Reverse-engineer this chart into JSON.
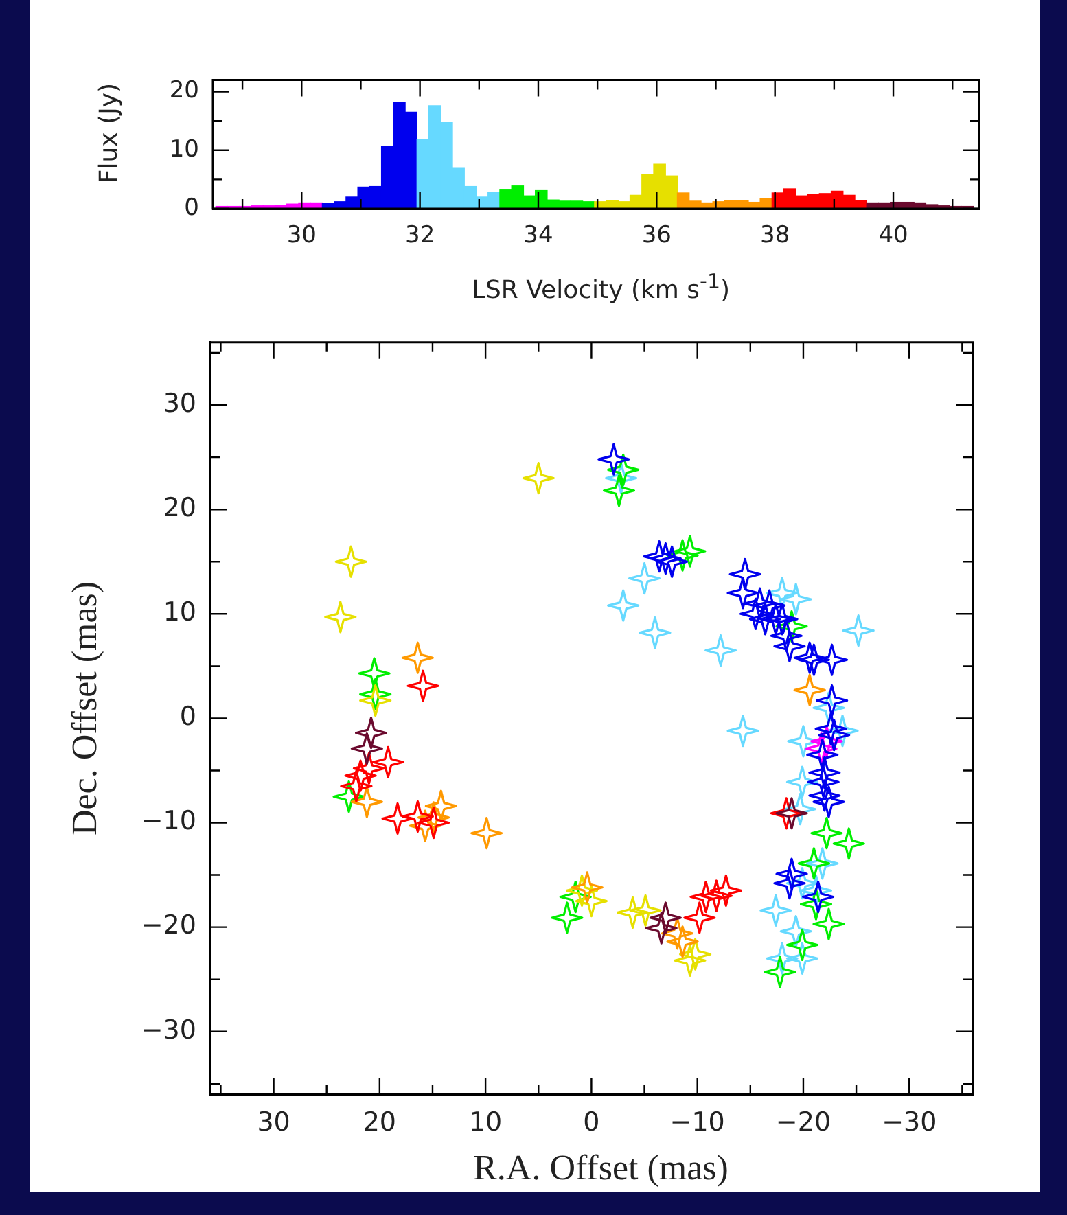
{
  "chart_data": [
    {
      "type": "histogram",
      "xlabel": "LSR Velocity (km s$^{-1}$)",
      "ylabel": "Flux (Jy)",
      "bins": [
        28.55,
        28.75,
        28.95,
        29.15,
        29.35,
        29.55,
        29.75,
        29.95,
        30.15,
        30.35,
        30.55,
        30.75,
        30.95,
        31.15,
        31.35,
        31.55,
        31.75,
        31.95,
        32.15,
        32.35,
        32.55,
        32.75,
        32.95,
        33.15,
        33.35,
        33.55,
        33.75,
        33.95,
        34.15,
        34.35,
        34.55,
        34.75,
        34.95,
        35.15,
        35.35,
        35.55,
        35.75,
        35.95,
        36.15,
        36.35,
        36.55,
        36.75,
        36.95,
        37.15,
        37.35,
        37.55,
        37.75,
        37.95,
        38.15,
        38.35,
        38.55,
        38.75,
        38.95,
        39.15,
        39.35,
        39.55,
        39.75,
        39.95,
        40.15,
        40.35,
        40.55,
        40.75,
        40.95,
        41.15,
        41.35
      ],
      "values": [
        0.4,
        0.4,
        0.4,
        0.5,
        0.5,
        0.6,
        0.8,
        1.0,
        1.0,
        0.9,
        1.2,
        2.0,
        3.7,
        3.8,
        10.6,
        18.2,
        16.5,
        11.8,
        17.6,
        14.8,
        6.9,
        3.8,
        2.0,
        2.8,
        3.2,
        3.9,
        2.2,
        3.1,
        1.5,
        1.3,
        1.3,
        1.2,
        1.2,
        1.4,
        1.2,
        2.3,
        5.9,
        7.6,
        5.6,
        2.7,
        1.3,
        1.0,
        1.2,
        1.4,
        1.4,
        1.1,
        1.8,
        2.7,
        3.4,
        2.2,
        2.5,
        2.6,
        3.0,
        2.3,
        1.4,
        1.0,
        1.0,
        1.1,
        1.1,
        1.0,
        0.7,
        0.5,
        0.4,
        0.4
      ],
      "colors": [
        "#ff00ff",
        "#ff00ff",
        "#ff00ff",
        "#ff00ff",
        "#ff00ff",
        "#ff00ff",
        "#ff00ff",
        "#ff00ff",
        "#ff00ff",
        "#0000ee",
        "#0000ee",
        "#0000ee",
        "#0000ee",
        "#0000ee",
        "#0000ee",
        "#0000ee",
        "#0000ee",
        "#66d9ff",
        "#66d9ff",
        "#66d9ff",
        "#66d9ff",
        "#66d9ff",
        "#66d9ff",
        "#66d9ff",
        "#00ee00",
        "#00ee00",
        "#00ee00",
        "#00ee00",
        "#00ee00",
        "#00ee00",
        "#00ee00",
        "#00ee00",
        "#e6e000",
        "#e6e000",
        "#e6e000",
        "#e6e000",
        "#e6e000",
        "#e6e000",
        "#e6e000",
        "#ff9900",
        "#ff9900",
        "#ff9900",
        "#ff9900",
        "#ff9900",
        "#ff9900",
        "#ff9900",
        "#ff9900",
        "#ff0000",
        "#ff0000",
        "#ff0000",
        "#ff0000",
        "#ff0000",
        "#ff0000",
        "#ff0000",
        "#ff0000",
        "#6b0a2e",
        "#6b0a2e",
        "#6b0a2e",
        "#6b0a2e",
        "#6b0a2e",
        "#6b0a2e",
        "#6b0a2e",
        "#6b0a2e",
        "#6b0a2e"
      ],
      "xlim": [
        28.5,
        41.45
      ],
      "ylim": [
        0,
        22
      ],
      "xticks": [
        {
          "value": 29,
          "label": null
        },
        30,
        {
          "value": 31,
          "label": null
        },
        32,
        {
          "value": 33,
          "label": null
        },
        34,
        {
          "value": 35,
          "label": null
        },
        36,
        {
          "value": 37,
          "label": null
        },
        38,
        {
          "value": 39,
          "label": null
        },
        40,
        {
          "value": 41,
          "label": null
        }
      ],
      "yticks": [
        0,
        {
          "value": 5,
          "label": null
        },
        10,
        {
          "value": 15,
          "label": null
        },
        20
      ]
    },
    {
      "type": "scatter",
      "xlabel": "R.A. Offset (mas)",
      "ylabel": "Dec. Offset (mas)",
      "marker": "star",
      "xlim": [
        36,
        -36
      ],
      "ylim": [
        -36,
        36
      ],
      "xticks": [
        {
          "value": 35,
          "label": null
        },
        30,
        {
          "value": 25,
          "label": null
        },
        20,
        {
          "value": 15,
          "label": null
        },
        10,
        {
          "value": 5,
          "label": null
        },
        0,
        {
          "value": -5,
          "label": null
        },
        {
          "value": -10,
          "label": "−10"
        },
        {
          "value": -15,
          "label": null
        },
        {
          "value": -20,
          "label": "−20"
        },
        {
          "value": -25,
          "label": null
        },
        {
          "value": -30,
          "label": "−30"
        },
        {
          "value": -35,
          "label": null
        }
      ],
      "yticks": [
        {
          "value": -35,
          "label": null
        },
        {
          "value": -30,
          "label": "−30"
        },
        {
          "value": -25,
          "label": null
        },
        {
          "value": -20,
          "label": "−20"
        },
        {
          "value": -15,
          "label": null
        },
        {
          "value": -10,
          "label": "−10"
        },
        {
          "value": -5,
          "label": null
        },
        0,
        {
          "value": 5,
          "label": null
        },
        10,
        {
          "value": 15,
          "label": null
        },
        20,
        {
          "value": 25,
          "label": null
        },
        30,
        {
          "value": 35,
          "label": null
        }
      ],
      "series": [
        {
          "color": "#66d9ff",
          "x": [
            -2.8,
            -3,
            -6,
            -5,
            -12.2,
            -18,
            -19.3,
            -25.2,
            -14.3,
            -20,
            -23.7,
            -22.4,
            -19.7,
            -19.9,
            -17.4,
            -19.3,
            -21.2,
            -21.8,
            -19.9,
            -18,
            -19.9
          ],
          "values": [
            23,
            10.8,
            8.2,
            13.4,
            6.5,
            12,
            11.4,
            8.4,
            -1.2,
            -2.2,
            -1.2,
            1,
            -8.7,
            -6.1,
            -18.4,
            -20.4,
            -16.5,
            -13.9,
            -23,
            -23,
            -15.8
          ]
        },
        {
          "color": "#00ee00",
          "x": [
            -3,
            -2.6,
            -9.3,
            -8.6,
            -18.9,
            20.5,
            20.4,
            22.9,
            1.5,
            2.3,
            -22.2,
            -24.3,
            -21,
            -22.4,
            -19.9,
            -17.8,
            -21.2
          ],
          "values": [
            23.8,
            21.8,
            16,
            15.6,
            8.8,
            4.3,
            2.3,
            -7.5,
            -17.1,
            -19.1,
            -11,
            -12,
            -13.9,
            -19.7,
            -21.7,
            -24.3,
            -17.8
          ]
        },
        {
          "color": "#e6e000",
          "x": [
            5,
            22.7,
            23.7,
            20.4,
            0.9,
            0,
            -3.9,
            -5.1,
            -9.3,
            -9.8
          ],
          "values": [
            23,
            15,
            9.7,
            1.7,
            -16.5,
            -17.5,
            -18.6,
            -18.4,
            -23.2,
            -22.6
          ]
        },
        {
          "color": "#ff9900",
          "x": [
            16.4,
            -20.6,
            21.2,
            14.9,
            14.2,
            15.7,
            9.9,
            0.4,
            -8.6,
            -8.1
          ],
          "values": [
            5.8,
            2.7,
            -8,
            -9.5,
            -8.4,
            -10.3,
            -11,
            -16.2,
            -21.4,
            -20.6
          ]
        },
        {
          "color": "#ff0000",
          "x": [
            15.9,
            21,
            21.8,
            19.2,
            22.2,
            18.3,
            16.4,
            14.9,
            -10.8,
            -11.8,
            -12.7,
            -10.2,
            -18.4
          ],
          "values": [
            3.1,
            -4.8,
            -5.5,
            -4.2,
            -6.5,
            -9.6,
            -9.4,
            -10,
            -17.1,
            -17,
            -16.5,
            -19.1,
            -9.1
          ]
        },
        {
          "color": "#6b0a2e",
          "x": [
            20.8,
            21.2,
            -7,
            -6.6,
            -18.9
          ],
          "values": [
            -1.4,
            -2.9,
            -19.1,
            -20.1,
            -9.1
          ]
        },
        {
          "color": "#ff00ff",
          "x": [
            -21.7,
            -22.2
          ],
          "values": [
            -2.9,
            -2.2
          ]
        },
        {
          "color": "#0000ee",
          "x": [
            -2.1,
            -6.4,
            -7,
            -7.6,
            -14.5,
            -14.3,
            -15.5,
            -15.9,
            -16.8,
            -17.4,
            -16.4,
            -18,
            -18.4,
            -18.7,
            -20.6,
            -21,
            -22.7,
            -22.7,
            -22.6,
            -22.9,
            -21.8,
            -22,
            -22,
            -21.9,
            -22.4,
            -18.7,
            -18.9,
            -21.4
          ],
          "values": [
            24.8,
            15.5,
            15.3,
            15,
            13.8,
            12,
            10,
            11,
            10.8,
            9.5,
            9.5,
            9.5,
            7.9,
            6.9,
            5.8,
            5.6,
            5.6,
            1.7,
            -1,
            -1.6,
            -3.5,
            -5.2,
            -7.4,
            -6.1,
            -8,
            -15.8,
            -14.9,
            -17.1
          ]
        }
      ]
    }
  ]
}
